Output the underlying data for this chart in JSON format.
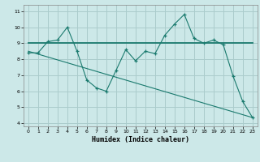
{
  "xlabel": "Humidex (Indice chaleur)",
  "bg_color": "#cce8e8",
  "grid_color": "#aacccc",
  "line_color": "#1a7a6e",
  "xlim": [
    -0.5,
    23.5
  ],
  "ylim": [
    3.8,
    11.4
  ],
  "xticks": [
    0,
    1,
    2,
    3,
    4,
    5,
    6,
    7,
    8,
    9,
    10,
    11,
    12,
    13,
    14,
    15,
    16,
    17,
    18,
    19,
    20,
    21,
    22,
    23
  ],
  "yticks": [
    4,
    5,
    6,
    7,
    8,
    9,
    10,
    11
  ],
  "line1_x": [
    0,
    1,
    2,
    3,
    4,
    5,
    6,
    7,
    8,
    9,
    10,
    11,
    12,
    13,
    14,
    15,
    16,
    17,
    18,
    19,
    20,
    21,
    22,
    23
  ],
  "line1_y": [
    8.4,
    8.4,
    9.1,
    9.2,
    10.0,
    8.5,
    6.7,
    6.2,
    6.0,
    7.3,
    8.6,
    7.9,
    8.5,
    8.35,
    9.5,
    10.2,
    10.8,
    9.3,
    9.0,
    9.2,
    8.9,
    6.95,
    5.35,
    4.35
  ],
  "line2_x": [
    0,
    23
  ],
  "line2_y": [
    9.0,
    9.0
  ],
  "line3_x": [
    0,
    23
  ],
  "line3_y": [
    8.5,
    4.35
  ]
}
